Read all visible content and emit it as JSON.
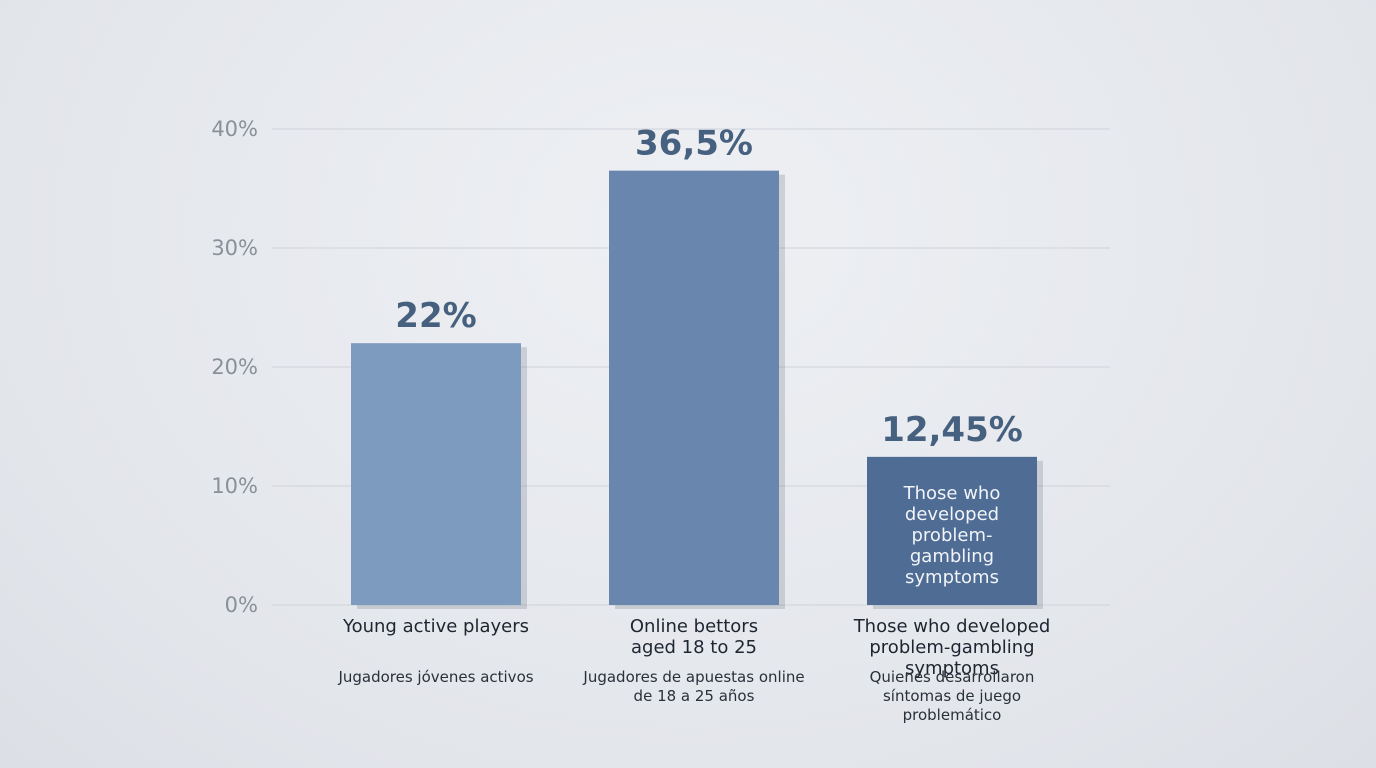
{
  "chart_data": {
    "type": "bar",
    "categories": [
      "Young active players",
      "Online bettors aged 18 to 25",
      "Those who developed problem-gambling symptoms"
    ],
    "subcategories": [
      "Jugadores jóvenes activos",
      "Jugadores de apuestas online de 18 a 25 años",
      "Quienes desarrollaron síntomas de juego problemático"
    ],
    "values": [
      22,
      36.5,
      12.45
    ],
    "value_labels": [
      "22%",
      "36,5%",
      "12,45%"
    ],
    "colors": [
      "#7d9bbf",
      "#6987ae",
      "#4f6c94"
    ],
    "annotation": "Those who developed problem-gambling symptoms",
    "ylim": [
      0,
      40
    ],
    "yticks": [
      {
        "value": 0,
        "label": "0%"
      },
      {
        "value": 10,
        "label": "10%"
      },
      {
        "value": 20,
        "label": "20%"
      },
      {
        "value": 30,
        "label": "30%"
      },
      {
        "value": 40,
        "label": "40%"
      }
    ],
    "grid": true
  }
}
